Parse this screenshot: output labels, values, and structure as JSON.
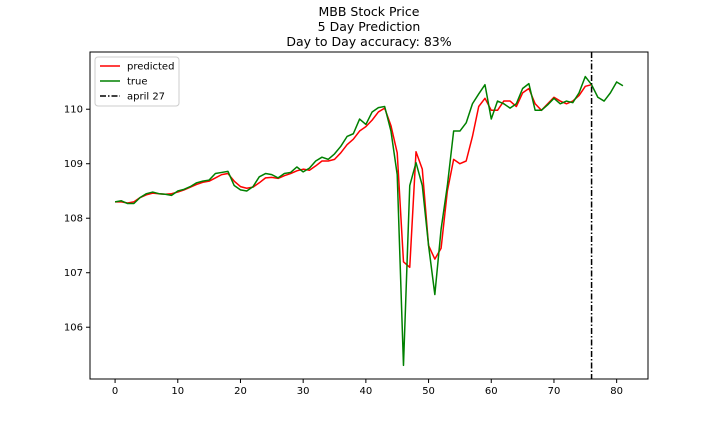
{
  "chart_data": {
    "type": "line",
    "title": [
      "MBB Stock Price",
      "5 Day Prediction",
      "Day to Day accuracy: 83%"
    ],
    "xlabel": "",
    "ylabel": "",
    "xlim": [
      -4,
      85
    ],
    "ylim": [
      105.05,
      111.05
    ],
    "xticks": [
      0,
      10,
      20,
      30,
      40,
      50,
      60,
      70,
      80
    ],
    "yticks": [
      106,
      107,
      108,
      109,
      110
    ],
    "grid": false,
    "legend_placement": "top-left",
    "vline": {
      "x": 76,
      "label": "april 27",
      "color": "#000000",
      "style": "dash-dot"
    },
    "series": [
      {
        "name": "predicted",
        "color": "#ff0000",
        "x_start": 0,
        "values": [
          108.3,
          108.3,
          108.28,
          108.3,
          108.38,
          108.43,
          108.46,
          108.45,
          108.44,
          108.45,
          108.48,
          108.52,
          108.57,
          108.62,
          108.66,
          108.68,
          108.74,
          108.8,
          108.82,
          108.68,
          108.58,
          108.55,
          108.57,
          108.65,
          108.74,
          108.75,
          108.73,
          108.78,
          108.82,
          108.87,
          108.9,
          108.88,
          108.96,
          109.05,
          109.05,
          109.08,
          109.2,
          109.35,
          109.45,
          109.6,
          109.68,
          109.8,
          109.95,
          110.02,
          109.7,
          109.2,
          107.2,
          107.1,
          109.22,
          108.9,
          107.5,
          107.25,
          107.45,
          108.5,
          109.08,
          109.0,
          109.05,
          109.5,
          110.05,
          110.2,
          109.98,
          109.98,
          110.15,
          110.15,
          110.05,
          110.3,
          110.38,
          110.1,
          109.98,
          110.1,
          110.22,
          110.15,
          110.1,
          110.15,
          110.25,
          110.42,
          110.45
        ]
      },
      {
        "name": "true",
        "color": "#008000",
        "x_start": 0,
        "values": [
          108.3,
          108.32,
          108.27,
          108.27,
          108.38,
          108.45,
          108.48,
          108.45,
          108.44,
          108.42,
          108.5,
          108.53,
          108.58,
          108.65,
          108.68,
          108.7,
          108.82,
          108.84,
          108.86,
          108.6,
          108.52,
          108.5,
          108.58,
          108.76,
          108.82,
          108.8,
          108.74,
          108.82,
          108.84,
          108.94,
          108.85,
          108.92,
          109.05,
          109.12,
          109.08,
          109.18,
          109.32,
          109.5,
          109.55,
          109.82,
          109.72,
          109.95,
          110.03,
          110.05,
          109.6,
          108.8,
          105.3,
          108.6,
          109.02,
          108.6,
          107.5,
          106.6,
          107.8,
          108.6,
          109.6,
          109.6,
          109.75,
          110.1,
          110.28,
          110.45,
          109.82,
          110.15,
          110.1,
          110.02,
          110.1,
          110.38,
          110.47,
          109.98,
          109.98,
          110.08,
          110.2,
          110.1,
          110.15,
          110.12,
          110.3,
          110.6,
          110.45,
          110.22,
          110.15,
          110.3,
          110.5,
          110.43
        ]
      }
    ]
  }
}
